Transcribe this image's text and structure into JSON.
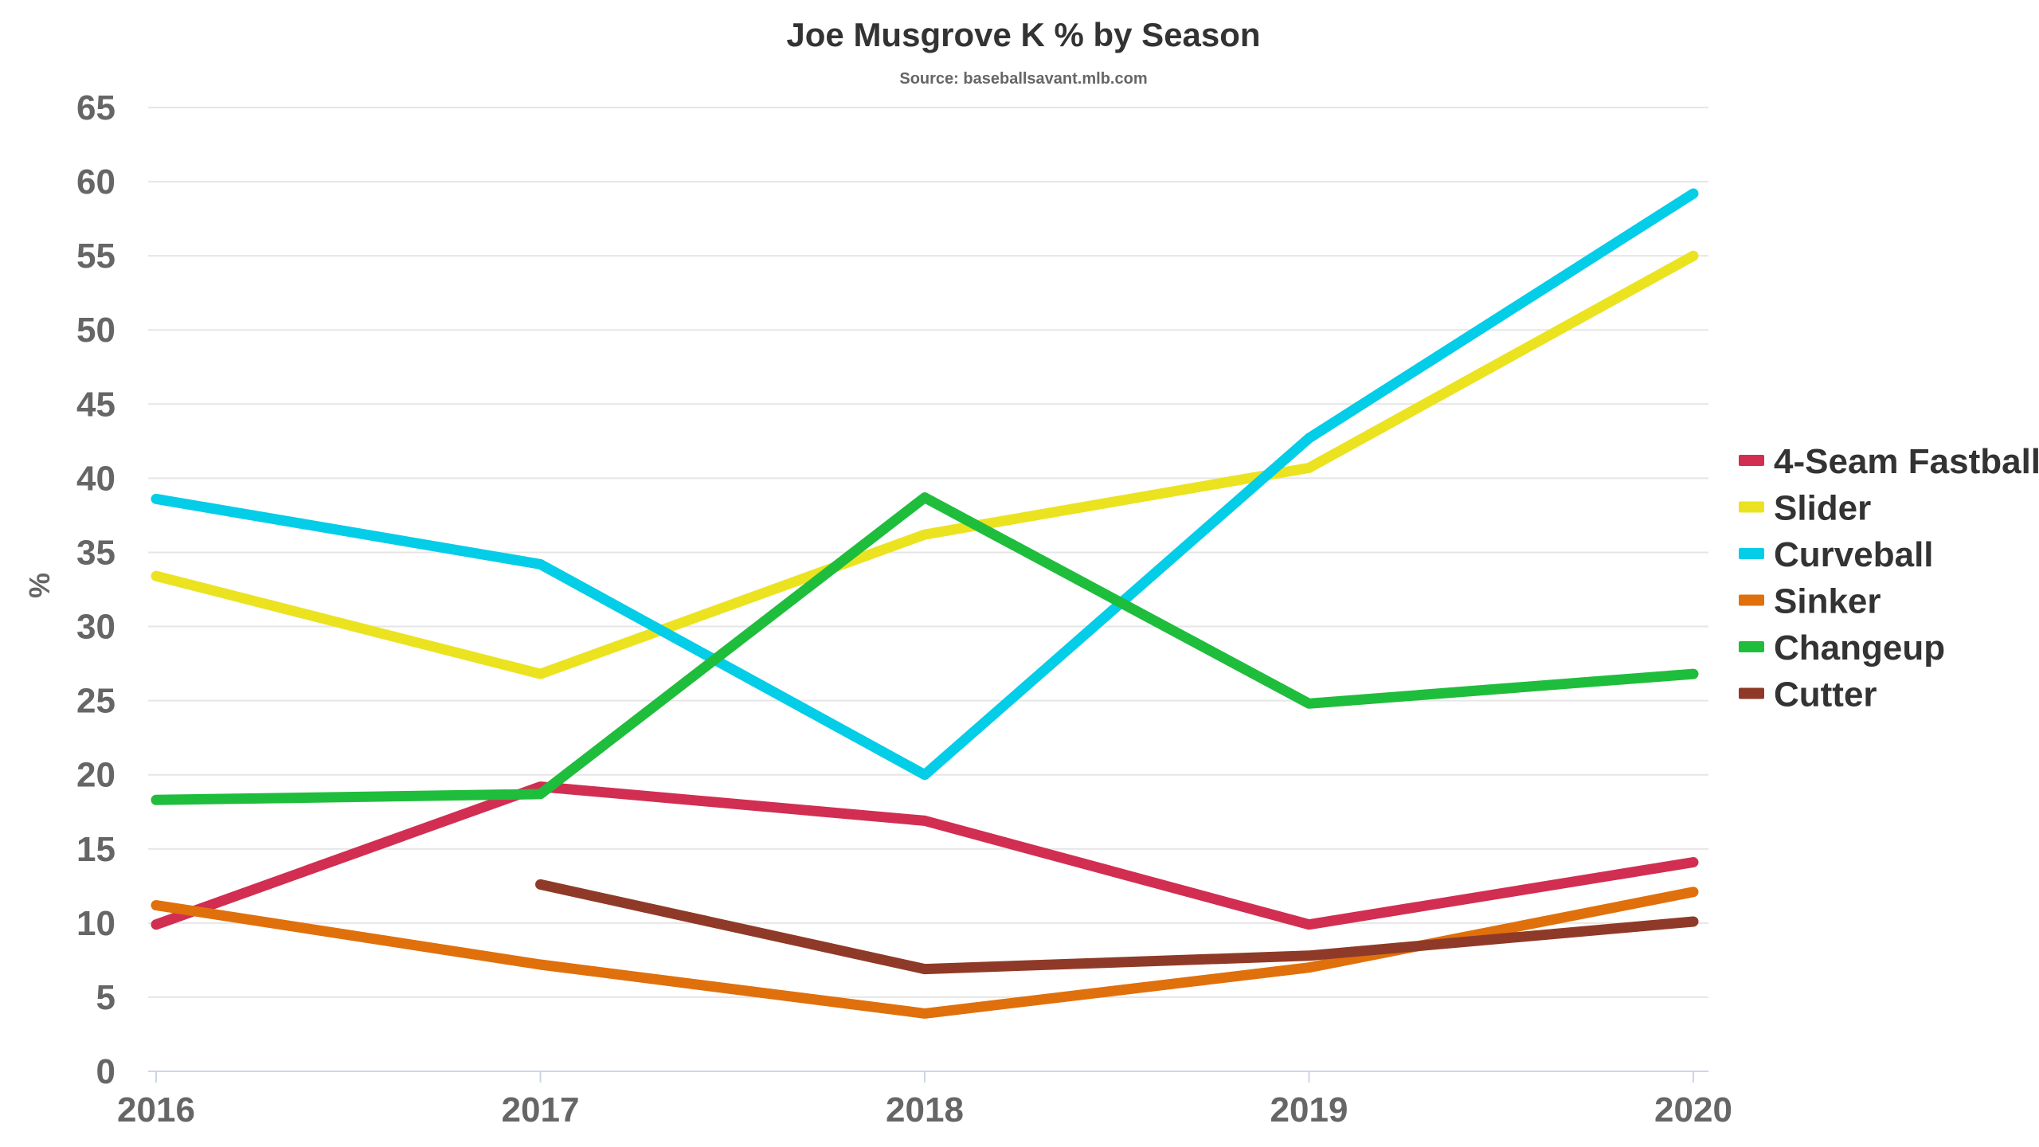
{
  "chart_data": {
    "type": "line",
    "title": "Joe Musgrove K % by Season",
    "subtitle": "Source: baseballsavant.mlb.com",
    "xlabel": "",
    "ylabel": "%",
    "x": [
      "2016",
      "2017",
      "2018",
      "2019",
      "2020"
    ],
    "ylim": [
      0,
      65
    ],
    "yticks": [
      0,
      5,
      10,
      15,
      20,
      25,
      30,
      35,
      40,
      45,
      50,
      55,
      60,
      65
    ],
    "grid": true,
    "legend_position": "right",
    "series": [
      {
        "name": "4-Seam Fastball",
        "color": "#d12e52",
        "values": [
          9.9,
          19.2,
          16.9,
          9.9,
          14.1
        ]
      },
      {
        "name": "Slider",
        "color": "#ebe320",
        "values": [
          33.4,
          26.8,
          36.2,
          40.7,
          55.0
        ]
      },
      {
        "name": "Curveball",
        "color": "#04cde8",
        "values": [
          38.6,
          34.2,
          20.0,
          42.7,
          59.2
        ]
      },
      {
        "name": "Sinker",
        "color": "#e0700b",
        "values": [
          11.2,
          7.2,
          3.9,
          7.0,
          12.1
        ]
      },
      {
        "name": "Changeup",
        "color": "#1fbd3c",
        "values": [
          18.3,
          18.7,
          38.7,
          24.8,
          26.8
        ]
      },
      {
        "name": "Cutter",
        "color": "#8f3a28",
        "values": [
          null,
          12.6,
          6.9,
          7.8,
          10.1
        ]
      }
    ]
  }
}
